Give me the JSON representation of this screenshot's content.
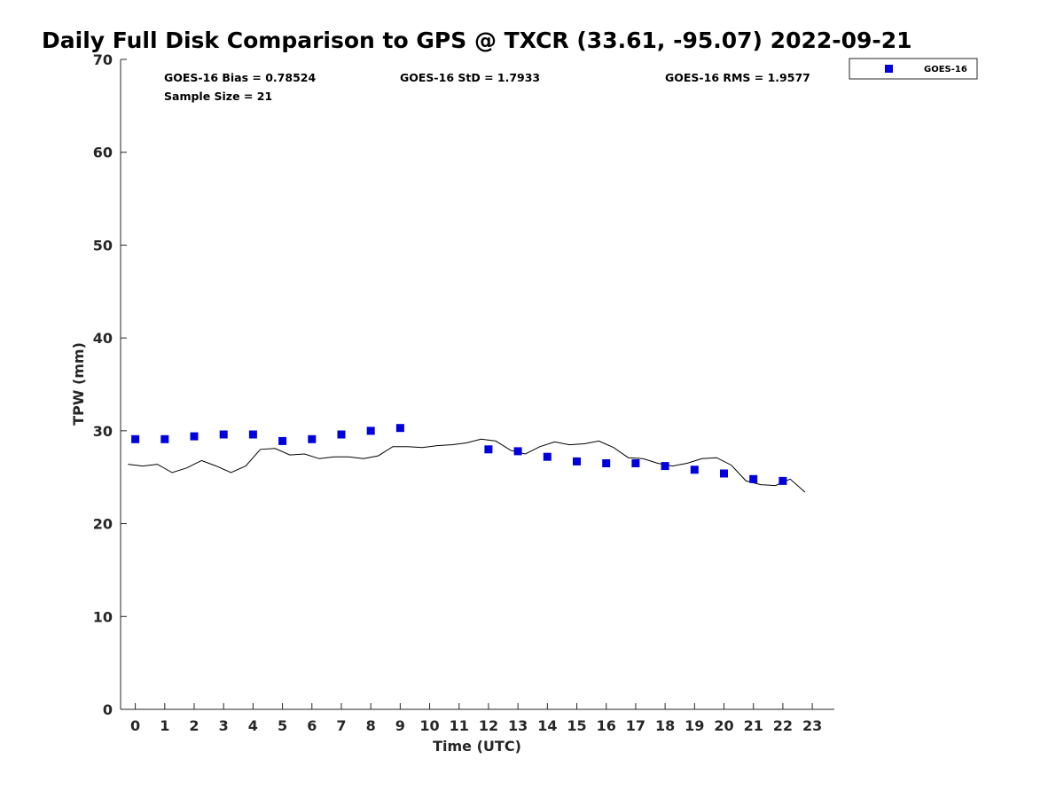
{
  "chart_data": {
    "type": "scatter",
    "title": "Daily Full Disk Comparison to GPS @ TXCR (33.61, -95.07) 2022-09-21",
    "xlabel": "Time (UTC)",
    "ylabel": "TPW (mm)",
    "xlim": [
      -0.5,
      23.75
    ],
    "ylim": [
      0,
      70
    ],
    "x_ticks": [
      0,
      1,
      2,
      3,
      4,
      5,
      6,
      7,
      8,
      9,
      10,
      11,
      12,
      13,
      14,
      15,
      16,
      17,
      18,
      19,
      20,
      21,
      22,
      23
    ],
    "y_ticks": [
      0,
      10,
      20,
      30,
      40,
      50,
      60,
      70
    ],
    "grid": false,
    "legend_position": "top-right-outside",
    "stats": {
      "bias": "GOES-16 Bias = 0.78524",
      "std": "GOES-16 StD = 1.7933",
      "rms": "GOES-16 RMS = 1.9577",
      "sample_size": "Sample Size = 21"
    },
    "series": [
      {
        "name": "GOES-16",
        "kind": "scatter",
        "marker": "square",
        "color": "#0000dd",
        "x": [
          0,
          1,
          2,
          3,
          4,
          5,
          6,
          7,
          8,
          9,
          12,
          13,
          14,
          15,
          16,
          17,
          18,
          19,
          20,
          21,
          22
        ],
        "y": [
          29.1,
          29.1,
          29.4,
          29.6,
          29.6,
          28.9,
          29.1,
          29.6,
          30.0,
          30.3,
          28.0,
          27.8,
          27.2,
          26.7,
          26.5,
          26.5,
          26.2,
          25.8,
          25.4,
          24.8,
          24.6
        ]
      },
      {
        "kind": "line",
        "color": "#000000",
        "x": [
          -0.25,
          0.25,
          0.75,
          1.25,
          1.75,
          2.25,
          2.75,
          3.25,
          3.75,
          4.25,
          4.75,
          5.25,
          5.75,
          6.25,
          6.75,
          7.25,
          7.75,
          8.25,
          8.75,
          9.25,
          9.75,
          10.25,
          10.75,
          11.25,
          11.75,
          12.25,
          12.75,
          13.25,
          13.75,
          14.25,
          14.75,
          15.25,
          15.75,
          16.25,
          16.75,
          17.25,
          17.75,
          18.25,
          18.75,
          19.25,
          19.75,
          20.25,
          20.75,
          21.25,
          21.75,
          22.25,
          22.75
        ],
        "y": [
          26.4,
          26.2,
          26.4,
          25.5,
          26.0,
          26.8,
          26.2,
          25.5,
          26.2,
          28.0,
          28.1,
          27.4,
          27.5,
          27.0,
          27.2,
          27.2,
          27.0,
          27.3,
          28.3,
          28.3,
          28.2,
          28.4,
          28.5,
          28.7,
          29.1,
          28.9,
          27.9,
          27.5,
          28.3,
          28.8,
          28.5,
          28.6,
          28.9,
          28.2,
          27.1,
          27.0,
          26.5,
          26.2,
          26.5,
          27.0,
          27.1,
          26.3,
          24.6,
          24.2,
          24.1,
          24.8,
          23.4
        ]
      }
    ]
  }
}
